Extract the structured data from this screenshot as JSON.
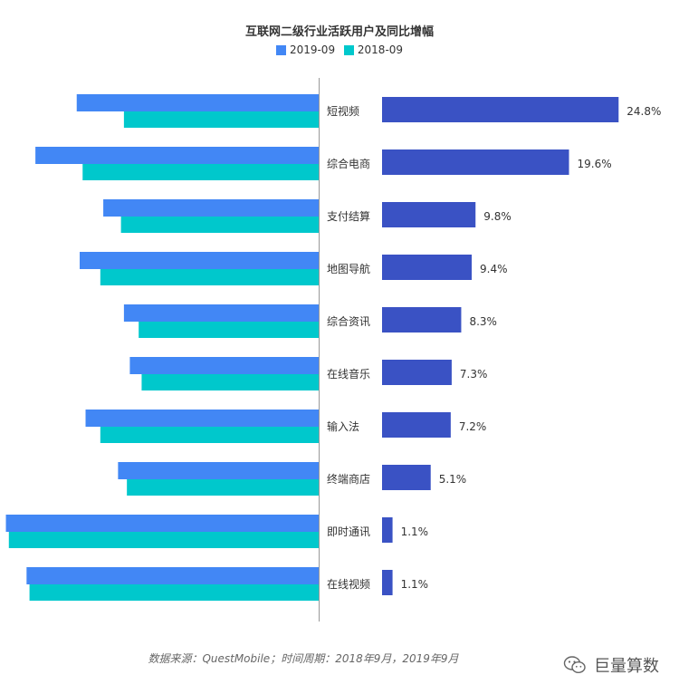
{
  "chart_data": {
    "type": "bar",
    "title": "互联网二级行业活跃用户及同比增幅",
    "categories": [
      "短视频",
      "综合电商",
      "支付结算",
      "地图导航",
      "综合资讯",
      "在线音乐",
      "输入法",
      "终端商店",
      "即时通讯",
      "在线视频"
    ],
    "series": [
      {
        "name": "2019-09",
        "values": [
          8.2,
          9.6,
          7.3,
          8.1,
          6.6,
          6.4,
          7.9,
          6.8,
          10.6,
          9.9
        ]
      },
      {
        "name": "2018-09",
        "values": [
          6.6,
          8.0,
          6.7,
          7.4,
          6.1,
          6.0,
          7.4,
          6.5,
          10.5,
          9.8
        ]
      }
    ],
    "growth": {
      "values": [
        24.8,
        19.6,
        9.8,
        9.4,
        8.3,
        7.3,
        7.2,
        5.1,
        1.1,
        1.1
      ],
      "labels": [
        "24.8%",
        "19.6%",
        "9.8%",
        "9.4%",
        "8.3%",
        "7.3%",
        "7.2%",
        "5.1%",
        "1.1%",
        "1.1%"
      ]
    },
    "user_axis_max": 10.8,
    "growth_axis_max": 28.0,
    "legend_position": "top-center",
    "grid": false,
    "colors": {
      "series_2019": "#4287f5",
      "series_2018": "#00c8cc",
      "growth": "#3a52c4",
      "axis": "#999999"
    }
  },
  "source_note": "数据来源：QuestMobile；时间周期：2018年9月，2019年9月",
  "watermark": {
    "text": "巨量算数",
    "icon": "wechat-icon"
  }
}
